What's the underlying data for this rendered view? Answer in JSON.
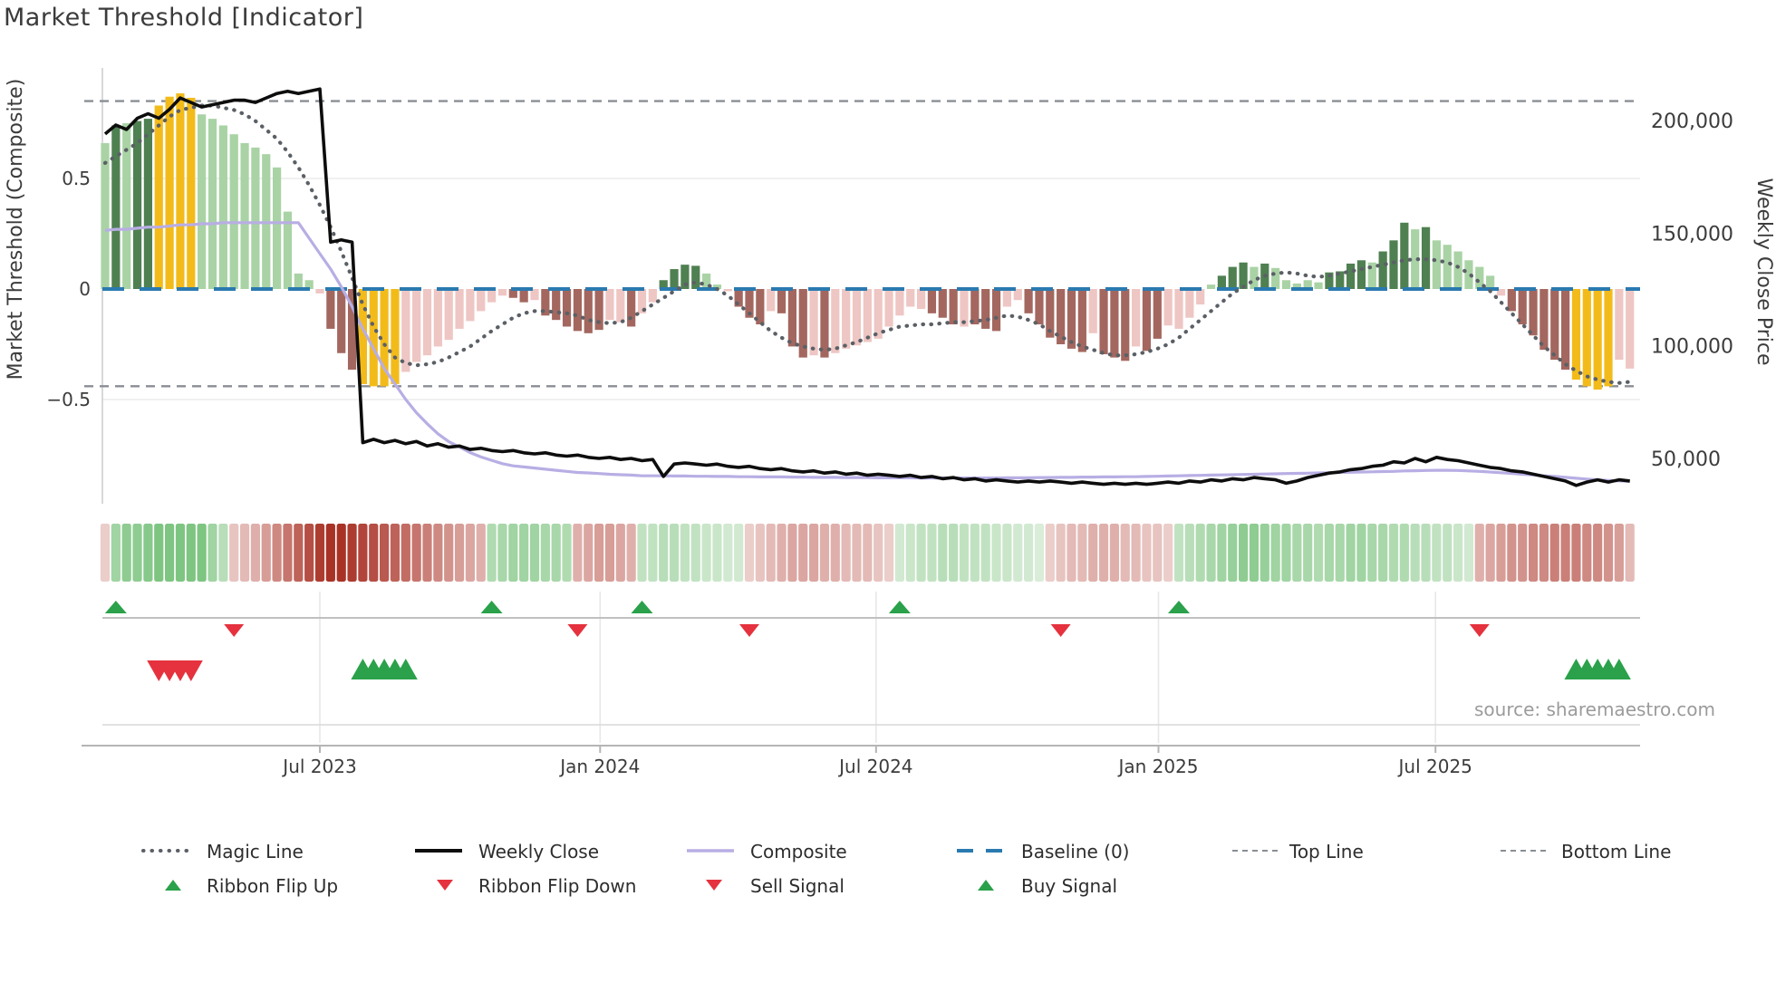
{
  "header": {
    "title": "Market Threshold [Indicator]"
  },
  "source": "source: sharemaestro.com",
  "axes": {
    "left_label": "Market Threshold (Composite)",
    "right_label": "Weekly Close Price",
    "left_ticks": [
      "0.5",
      "0",
      "−0.5"
    ],
    "right_ticks": [
      "200,000",
      "150,000",
      "100,000",
      "50,000"
    ],
    "x_ticks": [
      "Jul 2023",
      "Jan 2024",
      "Jul 2024",
      "Jan 2025",
      "Jul 2025"
    ]
  },
  "legend": {
    "row1": [
      {
        "label": "Magic Line",
        "type": "dotted-gray"
      },
      {
        "label": "Weekly Close",
        "type": "solid-black"
      },
      {
        "label": "Composite",
        "type": "solid-lavender"
      },
      {
        "label": "Baseline (0)",
        "type": "dashed-blue"
      },
      {
        "label": "Top Line",
        "type": "dashed-gray"
      },
      {
        "label": "Bottom Line",
        "type": "dashed-gray"
      }
    ],
    "row2": [
      {
        "label": "Ribbon Flip Up",
        "type": "triangle-up-green"
      },
      {
        "label": "Ribbon Flip Down",
        "type": "triangle-down-red"
      },
      {
        "label": "Sell Signal",
        "type": "triangle-down-red"
      },
      {
        "label": "Buy Signal",
        "type": "triangle-up-green"
      }
    ]
  },
  "colors": {
    "bar_light_green": "#a9d3a5",
    "bar_dark_green": "#4f8051",
    "bar_yellow": "#f3bb1a",
    "bar_light_red": "#eec6c3",
    "bar_dark_red": "#a3675f",
    "weekly_close": "#0d0d0d",
    "composite_line": "#b8aee4",
    "magic_line": "#5b6066",
    "baseline": "#2a7ab0",
    "threshold_lines": "#8a8e94",
    "signal_green": "#2aa14a",
    "signal_red": "#e5323e",
    "ribbon_green_max": "#4daf53",
    "ribbon_red_max": "#a93226",
    "axis_text": "#3c3c3c",
    "source_text": "#9b9b9b"
  },
  "chart_data": {
    "type": "bar",
    "title": "Market Threshold [Indicator]",
    "xlabel_ticks": [
      "Jul 2023",
      "Jan 2024",
      "Jul 2024",
      "Jan 2025",
      "Jul 2025"
    ],
    "x_tick_week_index": [
      20.0,
      46.1,
      71.8,
      98.1,
      123.9
    ],
    "ylabel_left": "Market Threshold (Composite)",
    "ylabel_right": "Weekly Close Price",
    "left_ylim": [
      -0.97,
      1.0
    ],
    "right_ylim": [
      30000,
      223000
    ],
    "baseline": 0,
    "top_line": 0.85,
    "bottom_line": -0.44,
    "weeks": 143,
    "bars": {
      "values": [
        0.66,
        0.74,
        0.75,
        0.76,
        0.77,
        0.83,
        0.87,
        0.885,
        0.865,
        0.79,
        0.77,
        0.74,
        0.7,
        0.66,
        0.64,
        0.61,
        0.55,
        0.35,
        0.07,
        0.04,
        -0.02,
        -0.18,
        -0.29,
        -0.365,
        -0.43,
        -0.44,
        -0.44,
        -0.43,
        -0.375,
        -0.33,
        -0.3,
        -0.26,
        -0.23,
        -0.18,
        -0.145,
        -0.1,
        -0.06,
        -0.03,
        -0.04,
        -0.06,
        -0.05,
        -0.12,
        -0.14,
        -0.17,
        -0.19,
        -0.2,
        -0.185,
        -0.14,
        -0.15,
        -0.17,
        -0.11,
        -0.06,
        0.04,
        0.09,
        0.11,
        0.105,
        0.07,
        0.02,
        -0.01,
        -0.08,
        -0.13,
        -0.16,
        -0.1,
        -0.11,
        -0.26,
        -0.31,
        -0.3,
        -0.31,
        -0.29,
        -0.27,
        -0.255,
        -0.24,
        -0.225,
        -0.17,
        -0.12,
        -0.08,
        -0.09,
        -0.11,
        -0.13,
        -0.16,
        -0.17,
        -0.16,
        -0.18,
        -0.19,
        -0.08,
        -0.05,
        -0.11,
        -0.16,
        -0.22,
        -0.25,
        -0.27,
        -0.285,
        -0.2,
        -0.295,
        -0.31,
        -0.325,
        -0.26,
        -0.28,
        -0.225,
        -0.165,
        -0.18,
        -0.13,
        -0.07,
        0.02,
        0.06,
        0.1,
        0.12,
        0.1,
        0.115,
        0.095,
        0.04,
        0.025,
        0.04,
        0.03,
        0.075,
        0.08,
        0.115,
        0.13,
        0.12,
        0.17,
        0.22,
        0.3,
        0.27,
        0.28,
        0.22,
        0.2,
        0.17,
        0.13,
        0.1,
        0.06,
        -0.03,
        -0.1,
        -0.16,
        -0.21,
        -0.275,
        -0.32,
        -0.365,
        -0.41,
        -0.44,
        -0.455,
        -0.44,
        -0.32,
        -0.36
      ],
      "colors": [
        "lg",
        "dg",
        "lg",
        "dg",
        "dg",
        "y",
        "y",
        "y",
        "y",
        "lg",
        "lg",
        "lg",
        "lg",
        "lg",
        "lg",
        "lg",
        "lg",
        "lg",
        "lg",
        "lg",
        "lr",
        "dr",
        "dr",
        "dr",
        "y",
        "y",
        "y",
        "y",
        "lr",
        "lr",
        "lr",
        "lr",
        "lr",
        "lr",
        "lr",
        "lr",
        "lr",
        "lr",
        "dr",
        "dr",
        "lr",
        "dr",
        "dr",
        "dr",
        "dr",
        "dr",
        "dr",
        "lr",
        "lr",
        "dr",
        "lr",
        "lr",
        "dg",
        "dg",
        "dg",
        "dg",
        "lg",
        "lg",
        "lr",
        "dr",
        "dr",
        "dr",
        "lr",
        "dr",
        "dr",
        "dr",
        "lr",
        "dr",
        "lr",
        "lr",
        "lr",
        "lr",
        "lr",
        "lr",
        "lr",
        "lr",
        "lr",
        "dr",
        "dr",
        "dr",
        "lr",
        "dr",
        "dr",
        "dr",
        "lr",
        "lr",
        "dr",
        "dr",
        "dr",
        "dr",
        "dr",
        "dr",
        "lr",
        "dr",
        "dr",
        "dr",
        "lr",
        "dr",
        "dr",
        "lr",
        "lr",
        "lr",
        "lr",
        "lg",
        "dg",
        "dg",
        "dg",
        "lg",
        "dg",
        "lg",
        "lg",
        "lg",
        "lg",
        "lg",
        "dg",
        "dg",
        "dg",
        "dg",
        "lg",
        "dg",
        "dg",
        "dg",
        "lg",
        "dg",
        "lg",
        "lg",
        "lg",
        "lg",
        "lg",
        "lg",
        "lr",
        "dr",
        "dr",
        "dr",
        "dr",
        "dr",
        "dr",
        "y",
        "y",
        "y",
        "y",
        "lr",
        "lr"
      ]
    },
    "weekly_close": [
      194000,
      198000,
      196000,
      201000,
      203000,
      201000,
      205000,
      210000,
      208000,
      206000,
      207000,
      208000,
      209000,
      209000,
      208000,
      210000,
      212000,
      213000,
      212000,
      213000,
      214000,
      146000,
      147000,
      146000,
      57000,
      58500,
      57000,
      58000,
      56500,
      57500,
      55500,
      56500,
      55000,
      55500,
      54000,
      54500,
      53500,
      53000,
      53500,
      52500,
      52000,
      52500,
      51500,
      51000,
      51500,
      50500,
      50000,
      50500,
      49500,
      50000,
      49000,
      49500,
      42000,
      47500,
      48000,
      47500,
      47000,
      47500,
      46500,
      46000,
      46500,
      45500,
      45000,
      45500,
      44500,
      44000,
      44500,
      43500,
      44000,
      43000,
      43500,
      42500,
      43000,
      42500,
      42000,
      42500,
      41500,
      42000,
      41000,
      41500,
      40500,
      41000,
      40000,
      40500,
      40000,
      39500,
      40000,
      39500,
      40000,
      39500,
      39000,
      39500,
      39000,
      38500,
      39000,
      38500,
      39000,
      38500,
      39000,
      39500,
      39000,
      40000,
      39500,
      40500,
      40000,
      41000,
      40500,
      41500,
      41000,
      40500,
      39000,
      40000,
      41500,
      42500,
      43500,
      44000,
      45000,
      45500,
      46500,
      47000,
      48500,
      48000,
      50000,
      48500,
      50500,
      49500,
      49000,
      48000,
      47000,
      46000,
      45500,
      44500,
      44000,
      43000,
      42000,
      41000,
      40000,
      38000,
      39500,
      40500,
      39500,
      40500,
      40000
    ],
    "composite": [
      0.265,
      0.27,
      0.27,
      0.275,
      0.28,
      0.28,
      0.285,
      0.29,
      0.29,
      0.295,
      0.295,
      0.3,
      0.3,
      0.3,
      0.3,
      0.3,
      0.3,
      0.3,
      0.3,
      0.23,
      0.16,
      0.09,
      0.01,
      -0.08,
      -0.18,
      -0.27,
      -0.36,
      -0.43,
      -0.5,
      -0.56,
      -0.61,
      -0.655,
      -0.69,
      -0.715,
      -0.74,
      -0.76,
      -0.775,
      -0.79,
      -0.8,
      -0.805,
      -0.81,
      -0.815,
      -0.82,
      -0.825,
      -0.83,
      -0.832,
      -0.835,
      -0.838,
      -0.84,
      -0.842,
      -0.845,
      -0.845,
      -0.845,
      -0.846,
      -0.846,
      -0.847,
      -0.847,
      -0.848,
      -0.848,
      -0.849,
      -0.849,
      -0.85,
      -0.85,
      -0.85,
      -0.851,
      -0.851,
      -0.852,
      -0.852,
      -0.852,
      -0.853,
      -0.853,
      -0.853,
      -0.854,
      -0.854,
      -0.854,
      -0.854,
      -0.855,
      -0.855,
      -0.855,
      -0.855,
      -0.855,
      -0.855,
      -0.855,
      -0.855,
      -0.854,
      -0.854,
      -0.854,
      -0.853,
      -0.853,
      -0.852,
      -0.852,
      -0.851,
      -0.851,
      -0.85,
      -0.85,
      -0.849,
      -0.849,
      -0.848,
      -0.847,
      -0.846,
      -0.845,
      -0.844,
      -0.843,
      -0.842,
      -0.841,
      -0.84,
      -0.839,
      -0.838,
      -0.837,
      -0.836,
      -0.835,
      -0.834,
      -0.833,
      -0.832,
      -0.831,
      -0.83,
      -0.829,
      -0.828,
      -0.827,
      -0.826,
      -0.825,
      -0.823,
      -0.822,
      -0.821,
      -0.82,
      -0.82,
      -0.821,
      -0.823,
      -0.825,
      -0.828,
      -0.831,
      -0.834,
      -0.838,
      -0.841,
      -0.845,
      -0.848,
      -0.852,
      -0.856,
      -0.86,
      -0.863,
      -0.866,
      -0.868,
      -0.87
    ],
    "magic_line": [
      0.57,
      0.6,
      0.63,
      0.66,
      0.7,
      0.74,
      0.78,
      0.81,
      0.82,
      0.83,
      0.83,
      0.82,
      0.81,
      0.79,
      0.76,
      0.72,
      0.68,
      0.62,
      0.55,
      0.47,
      0.38,
      0.28,
      0.17,
      0.05,
      -0.07,
      -0.17,
      -0.25,
      -0.31,
      -0.335,
      -0.345,
      -0.34,
      -0.33,
      -0.31,
      -0.285,
      -0.26,
      -0.225,
      -0.19,
      -0.16,
      -0.13,
      -0.11,
      -0.1,
      -0.1,
      -0.105,
      -0.11,
      -0.12,
      -0.14,
      -0.15,
      -0.155,
      -0.15,
      -0.13,
      -0.1,
      -0.07,
      -0.04,
      -0.01,
      0.02,
      0.03,
      0.02,
      0.0,
      -0.03,
      -0.07,
      -0.11,
      -0.15,
      -0.19,
      -0.22,
      -0.245,
      -0.26,
      -0.27,
      -0.275,
      -0.27,
      -0.255,
      -0.24,
      -0.22,
      -0.2,
      -0.185,
      -0.17,
      -0.165,
      -0.16,
      -0.16,
      -0.155,
      -0.15,
      -0.15,
      -0.145,
      -0.14,
      -0.13,
      -0.12,
      -0.125,
      -0.14,
      -0.16,
      -0.19,
      -0.215,
      -0.24,
      -0.26,
      -0.275,
      -0.29,
      -0.3,
      -0.3,
      -0.295,
      -0.285,
      -0.27,
      -0.25,
      -0.22,
      -0.18,
      -0.14,
      -0.1,
      -0.06,
      -0.02,
      0.01,
      0.04,
      0.06,
      0.07,
      0.075,
      0.07,
      0.06,
      0.055,
      0.06,
      0.07,
      0.08,
      0.09,
      0.1,
      0.11,
      0.12,
      0.13,
      0.135,
      0.135,
      0.13,
      0.12,
      0.1,
      0.07,
      0.03,
      -0.01,
      -0.06,
      -0.11,
      -0.16,
      -0.21,
      -0.26,
      -0.3,
      -0.34,
      -0.37,
      -0.395,
      -0.41,
      -0.42,
      -0.425,
      -0.42
    ],
    "ribbon": [
      -0.2,
      0.5,
      0.6,
      0.6,
      0.65,
      0.7,
      0.7,
      0.7,
      0.7,
      0.7,
      0.5,
      0.35,
      -0.25,
      -0.3,
      -0.35,
      -0.45,
      -0.55,
      -0.65,
      -0.75,
      -0.85,
      -0.95,
      -1,
      -1,
      -0.95,
      -0.9,
      -0.85,
      -0.8,
      -0.75,
      -0.7,
      -0.65,
      -0.6,
      -0.55,
      -0.5,
      -0.45,
      -0.4,
      -0.35,
      0.4,
      0.45,
      0.5,
      0.5,
      0.5,
      0.45,
      0.45,
      0.4,
      -0.35,
      -0.4,
      -0.45,
      -0.45,
      -0.4,
      -0.35,
      0.3,
      0.3,
      0.35,
      0.35,
      0.3,
      0.3,
      0.25,
      0.25,
      0.2,
      0.2,
      -0.2,
      -0.25,
      -0.3,
      -0.35,
      -0.4,
      -0.4,
      -0.4,
      -0.35,
      -0.35,
      -0.3,
      -0.3,
      -0.3,
      -0.25,
      -0.2,
      0.2,
      0.25,
      0.3,
      0.3,
      0.35,
      0.35,
      0.3,
      0.3,
      0.3,
      0.25,
      0.25,
      0.2,
      0.2,
      0.15,
      -0.2,
      -0.25,
      -0.3,
      -0.3,
      -0.35,
      -0.35,
      -0.35,
      -0.3,
      -0.3,
      -0.25,
      -0.25,
      -0.2,
      0.3,
      0.35,
      0.4,
      0.45,
      0.5,
      0.55,
      0.6,
      0.6,
      0.55,
      0.5,
      0.5,
      0.45,
      0.45,
      0.4,
      0.45,
      0.45,
      0.5,
      0.5,
      0.45,
      0.45,
      0.4,
      0.4,
      0.35,
      0.35,
      0.3,
      0.3,
      0.25,
      0.2,
      -0.35,
      -0.4,
      -0.45,
      -0.5,
      -0.5,
      -0.55,
      -0.55,
      -0.6,
      -0.6,
      -0.6,
      -0.55,
      -0.55,
      -0.5,
      -0.45,
      -0.3
    ],
    "signals": {
      "ribbon_flip_up_weeks": [
        1,
        36,
        50,
        74,
        100
      ],
      "ribbon_flip_down_weeks": [
        12,
        44,
        60,
        89,
        128
      ],
      "sell_weeks": [
        5,
        6,
        7,
        8
      ],
      "buy_weeks": [
        24,
        25,
        26,
        27,
        28,
        137,
        138,
        139,
        140,
        141
      ]
    }
  }
}
